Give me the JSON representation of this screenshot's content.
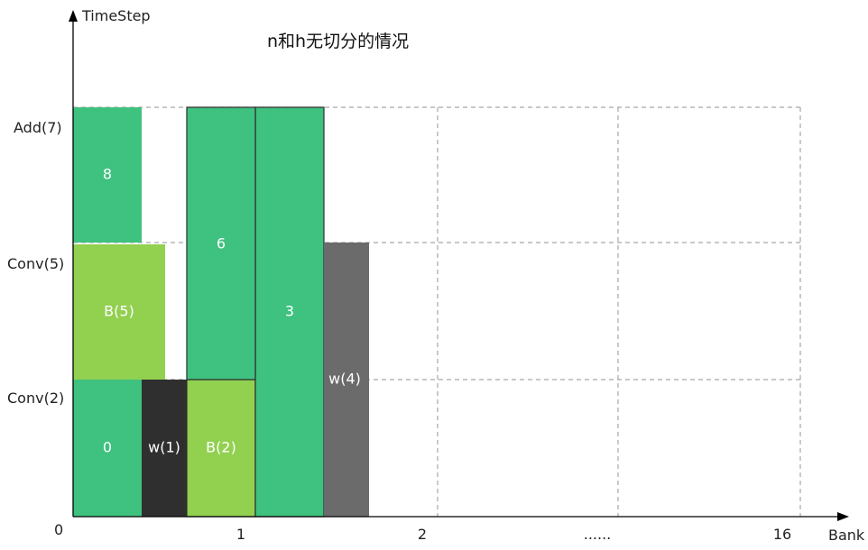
{
  "title": "n和h无切分的情况",
  "axes": {
    "y_label": "TimeStep",
    "x_label": "Bank",
    "origin_label": "0",
    "y_ticks": [
      "Conv(2)",
      "Conv(5)",
      "Add(7)"
    ],
    "x_ticks": [
      "1",
      "2",
      "......",
      "16"
    ]
  },
  "blocks": [
    {
      "label": "0",
      "color": "#3fc17f"
    },
    {
      "label": "w(1)",
      "color": "#2f2f2f"
    },
    {
      "label": "B(2)",
      "color": "#92d050"
    },
    {
      "label": "3",
      "color": "#3fc17f"
    },
    {
      "label": "w(4)",
      "color": "#6b6b6b"
    },
    {
      "label": "B(5)",
      "color": "#92d050"
    },
    {
      "label": "6",
      "color": "#3fc17f"
    },
    {
      "label": "8",
      "color": "#3fc17f"
    }
  ],
  "colors": {
    "grid": "#a8a8a8",
    "axis": "#000000",
    "block_border": "#2d2d2d"
  }
}
